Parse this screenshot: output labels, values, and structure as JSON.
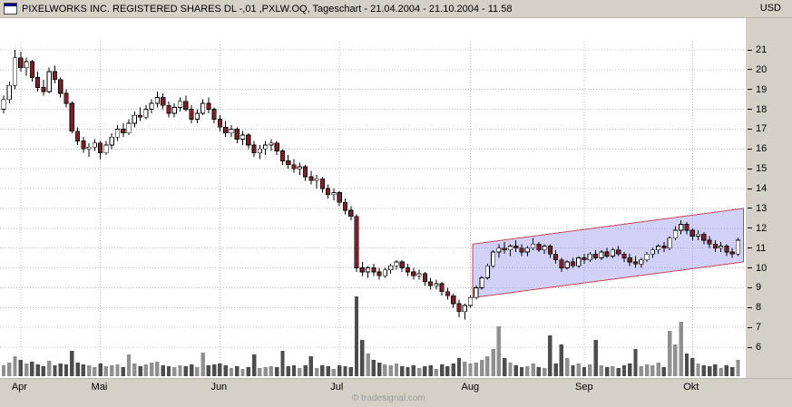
{
  "title_bar": {
    "title": "PIXELWORKS INC. REGISTERED SHARES DL -,01 ,PXLW.OQ, Tageschart - 21.04.2004 - 21.10.2004 - 11.58",
    "currency": "USD"
  },
  "footer": {
    "watermark": "© tradesignal.com"
  },
  "chart_data": {
    "type": "candlestick",
    "title": "PIXELWORKS INC. REGISTERED SHARES DL -,01 ,PXLW.OQ, Tageschart",
    "date_range": "21.04.2004 - 21.10.2004 - 11.58",
    "currency": "USD",
    "grid": true,
    "y_axis": {
      "ticks": [
        21,
        20,
        19,
        18,
        17,
        16,
        15,
        14,
        13,
        12,
        11,
        10,
        9,
        8,
        7,
        6
      ],
      "min": 6,
      "max": 21
    },
    "x_axis": {
      "months": [
        {
          "label": "Apr",
          "index": 3
        },
        {
          "label": "Mai",
          "index": 17
        },
        {
          "label": "Jun",
          "index": 38
        },
        {
          "label": "Jul",
          "index": 59
        },
        {
          "label": "Aug",
          "index": 82
        },
        {
          "label": "Sep",
          "index": 102
        },
        {
          "label": "Okt",
          "index": 121
        }
      ]
    },
    "candles_format": [
      "open",
      "high",
      "low",
      "close",
      "volume"
    ],
    "candles": [
      [
        18.0,
        18.7,
        17.8,
        18.5,
        12
      ],
      [
        18.5,
        19.4,
        18.3,
        19.2,
        15
      ],
      [
        19.2,
        21.0,
        19.0,
        20.6,
        22
      ],
      [
        20.6,
        20.9,
        19.9,
        20.1,
        18
      ],
      [
        20.1,
        20.6,
        19.7,
        20.4,
        14
      ],
      [
        20.4,
        20.5,
        19.4,
        19.6,
        16
      ],
      [
        19.6,
        19.9,
        18.9,
        19.1,
        13
      ],
      [
        19.1,
        19.5,
        18.7,
        18.9,
        11
      ],
      [
        18.9,
        20.1,
        18.8,
        19.9,
        17
      ],
      [
        19.9,
        20.2,
        19.3,
        19.5,
        12
      ],
      [
        19.5,
        19.6,
        18.6,
        18.8,
        14
      ],
      [
        18.8,
        19.0,
        18.1,
        18.3,
        13
      ],
      [
        18.3,
        18.4,
        16.8,
        16.9,
        28
      ],
      [
        16.9,
        17.1,
        16.2,
        16.4,
        15
      ],
      [
        16.4,
        16.6,
        15.8,
        16.0,
        13
      ],
      [
        16.0,
        16.3,
        15.6,
        16.1,
        12
      ],
      [
        16.1,
        16.5,
        15.9,
        16.3,
        10
      ],
      [
        16.3,
        16.4,
        15.5,
        15.8,
        14
      ],
      [
        15.8,
        16.4,
        15.7,
        16.2,
        11
      ],
      [
        16.2,
        16.8,
        16.0,
        16.6,
        12
      ],
      [
        16.6,
        17.2,
        16.4,
        17.0,
        13
      ],
      [
        17.0,
        17.3,
        16.6,
        16.8,
        10
      ],
      [
        16.8,
        17.5,
        16.7,
        17.3,
        24
      ],
      [
        17.3,
        17.9,
        17.1,
        17.7,
        14
      ],
      [
        17.7,
        18.1,
        17.4,
        17.6,
        11
      ],
      [
        17.6,
        18.2,
        17.5,
        18.0,
        13
      ],
      [
        18.0,
        18.5,
        17.8,
        18.3,
        15
      ],
      [
        18.3,
        18.9,
        18.1,
        18.6,
        16
      ],
      [
        18.6,
        18.8,
        18.0,
        18.2,
        12
      ],
      [
        18.2,
        18.4,
        17.6,
        17.8,
        11
      ],
      [
        17.8,
        18.3,
        17.6,
        18.1,
        10
      ],
      [
        18.1,
        18.6,
        17.9,
        18.4,
        12
      ],
      [
        18.4,
        18.7,
        17.9,
        18.0,
        11
      ],
      [
        18.0,
        18.2,
        17.3,
        17.5,
        13
      ],
      [
        17.5,
        18.0,
        17.3,
        17.8,
        10
      ],
      [
        17.8,
        18.5,
        17.7,
        18.3,
        26
      ],
      [
        18.3,
        18.6,
        17.8,
        18.0,
        12
      ],
      [
        18.0,
        18.1,
        17.3,
        17.5,
        13
      ],
      [
        17.5,
        17.7,
        16.9,
        17.1,
        14
      ],
      [
        17.1,
        17.4,
        16.6,
        16.8,
        12
      ],
      [
        16.8,
        17.2,
        16.6,
        17.0,
        9
      ],
      [
        17.0,
        17.1,
        16.3,
        16.5,
        11
      ],
      [
        16.5,
        16.9,
        16.2,
        16.7,
        8
      ],
      [
        16.7,
        16.8,
        16.0,
        16.2,
        10
      ],
      [
        16.2,
        16.4,
        15.6,
        15.8,
        24
      ],
      [
        15.8,
        16.2,
        15.5,
        16.0,
        9
      ],
      [
        16.0,
        16.4,
        15.7,
        16.2,
        10
      ],
      [
        16.2,
        16.5,
        15.9,
        16.3,
        11
      ],
      [
        16.3,
        16.4,
        15.7,
        15.9,
        10
      ],
      [
        15.9,
        16.0,
        15.2,
        15.4,
        28
      ],
      [
        15.4,
        15.7,
        15.0,
        15.2,
        11
      ],
      [
        15.2,
        15.5,
        14.8,
        15.0,
        12
      ],
      [
        15.0,
        15.3,
        14.7,
        15.1,
        9
      ],
      [
        15.1,
        15.2,
        14.4,
        14.6,
        12
      ],
      [
        14.6,
        14.9,
        14.2,
        14.4,
        22
      ],
      [
        14.4,
        14.7,
        14.0,
        14.5,
        9
      ],
      [
        14.5,
        14.6,
        13.8,
        14.0,
        12
      ],
      [
        14.0,
        14.2,
        13.5,
        13.7,
        11
      ],
      [
        13.7,
        14.0,
        13.4,
        13.8,
        8
      ],
      [
        13.8,
        13.9,
        13.1,
        13.3,
        12
      ],
      [
        13.3,
        13.5,
        12.7,
        12.9,
        11
      ],
      [
        12.9,
        13.1,
        12.4,
        12.6,
        10
      ],
      [
        12.6,
        12.7,
        9.8,
        10.0,
        88
      ],
      [
        10.0,
        10.3,
        9.6,
        9.8,
        40
      ],
      [
        9.8,
        10.1,
        9.5,
        10.0,
        25
      ],
      [
        10.0,
        10.2,
        9.6,
        9.8,
        18
      ],
      [
        9.8,
        10.0,
        9.4,
        9.6,
        15
      ],
      [
        9.6,
        10.0,
        9.5,
        9.9,
        13
      ],
      [
        9.9,
        10.2,
        9.7,
        10.1,
        12
      ],
      [
        10.1,
        10.4,
        9.9,
        10.3,
        14
      ],
      [
        10.3,
        10.4,
        9.8,
        10.0,
        11
      ],
      [
        10.0,
        10.2,
        9.6,
        9.8,
        10
      ],
      [
        9.8,
        10.0,
        9.4,
        9.6,
        12
      ],
      [
        9.6,
        9.9,
        9.4,
        9.7,
        9
      ],
      [
        9.7,
        9.8,
        9.1,
        9.3,
        11
      ],
      [
        9.3,
        9.5,
        8.9,
        9.1,
        12
      ],
      [
        9.1,
        9.4,
        8.9,
        9.2,
        8
      ],
      [
        9.2,
        9.3,
        8.6,
        8.8,
        13
      ],
      [
        8.8,
        9.0,
        8.4,
        8.6,
        11
      ],
      [
        8.6,
        8.7,
        8.0,
        8.2,
        14
      ],
      [
        8.2,
        8.4,
        7.5,
        7.8,
        20
      ],
      [
        7.8,
        8.2,
        7.4,
        8.1,
        16
      ],
      [
        8.1,
        8.6,
        8.0,
        8.5,
        14
      ],
      [
        8.5,
        9.1,
        8.4,
        9.0,
        15
      ],
      [
        9.0,
        9.6,
        8.9,
        9.5,
        18
      ],
      [
        9.5,
        10.2,
        9.4,
        10.1,
        22
      ],
      [
        10.1,
        10.9,
        10.0,
        10.8,
        30
      ],
      [
        10.8,
        11.2,
        10.5,
        11.0,
        55
      ],
      [
        11.0,
        11.3,
        10.7,
        10.9,
        20
      ],
      [
        10.9,
        11.2,
        10.6,
        11.1,
        15
      ],
      [
        11.1,
        11.4,
        10.8,
        11.0,
        12
      ],
      [
        11.0,
        11.2,
        10.6,
        10.8,
        10
      ],
      [
        10.8,
        11.1,
        10.6,
        11.0,
        11
      ],
      [
        11.0,
        11.5,
        10.9,
        11.2,
        14
      ],
      [
        11.2,
        11.3,
        10.8,
        10.9,
        10
      ],
      [
        10.9,
        11.2,
        10.7,
        11.1,
        9
      ],
      [
        11.1,
        11.2,
        10.5,
        10.7,
        45
      ],
      [
        10.7,
        10.9,
        10.2,
        10.4,
        14
      ],
      [
        10.4,
        10.5,
        9.8,
        10.0,
        35
      ],
      [
        10.0,
        10.4,
        9.9,
        10.3,
        20
      ],
      [
        10.3,
        10.5,
        10.0,
        10.1,
        12
      ],
      [
        10.1,
        10.6,
        10.0,
        10.5,
        14
      ],
      [
        10.5,
        10.7,
        10.2,
        10.4,
        10
      ],
      [
        10.4,
        10.8,
        10.3,
        10.7,
        13
      ],
      [
        10.7,
        10.9,
        10.4,
        10.5,
        40
      ],
      [
        10.5,
        10.9,
        10.4,
        10.8,
        12
      ],
      [
        10.8,
        11.0,
        10.5,
        10.6,
        10
      ],
      [
        10.6,
        11.0,
        10.5,
        10.9,
        11
      ],
      [
        10.9,
        11.1,
        10.6,
        10.7,
        9
      ],
      [
        10.7,
        10.8,
        10.3,
        10.5,
        12
      ],
      [
        10.5,
        10.7,
        10.1,
        10.3,
        14
      ],
      [
        10.3,
        10.6,
        10.0,
        10.2,
        30
      ],
      [
        10.2,
        10.5,
        10.0,
        10.4,
        11
      ],
      [
        10.4,
        10.8,
        10.3,
        10.7,
        13
      ],
      [
        10.7,
        11.0,
        10.5,
        10.9,
        12
      ],
      [
        10.9,
        11.2,
        10.7,
        11.1,
        15
      ],
      [
        11.1,
        11.3,
        10.8,
        11.0,
        10
      ],
      [
        11.0,
        11.6,
        10.9,
        11.5,
        50
      ],
      [
        11.5,
        12.1,
        11.4,
        11.9,
        35
      ],
      [
        11.9,
        12.4,
        11.7,
        12.2,
        60
      ],
      [
        12.2,
        12.3,
        11.7,
        11.9,
        25
      ],
      [
        11.9,
        12.0,
        11.4,
        11.6,
        20
      ],
      [
        11.6,
        11.9,
        11.4,
        11.7,
        14
      ],
      [
        11.7,
        11.8,
        11.2,
        11.4,
        12
      ],
      [
        11.4,
        11.6,
        11.0,
        11.2,
        11
      ],
      [
        11.2,
        11.4,
        10.8,
        11.0,
        13
      ],
      [
        11.0,
        11.3,
        10.8,
        11.1,
        9
      ],
      [
        11.1,
        11.2,
        10.6,
        10.8,
        12
      ],
      [
        10.8,
        11.0,
        10.5,
        10.7,
        10
      ],
      [
        10.7,
        11.5,
        10.6,
        11.4,
        18
      ]
    ],
    "channel": {
      "start_index": 82.4,
      "end_index": 130,
      "top_start": 11.2,
      "top_end": 13.0,
      "bottom_start": 8.5,
      "bottom_end": 10.3,
      "fill": "#9898f0",
      "opacity": 0.45,
      "border": "#cc4455"
    },
    "colors": {
      "up_fill": "#ffffff",
      "down_fill": "#7d1f2d",
      "outline": "#000000",
      "volume_up": "#909090",
      "volume_down": "#4d4d4d",
      "grid": "#bbbbbb"
    }
  }
}
